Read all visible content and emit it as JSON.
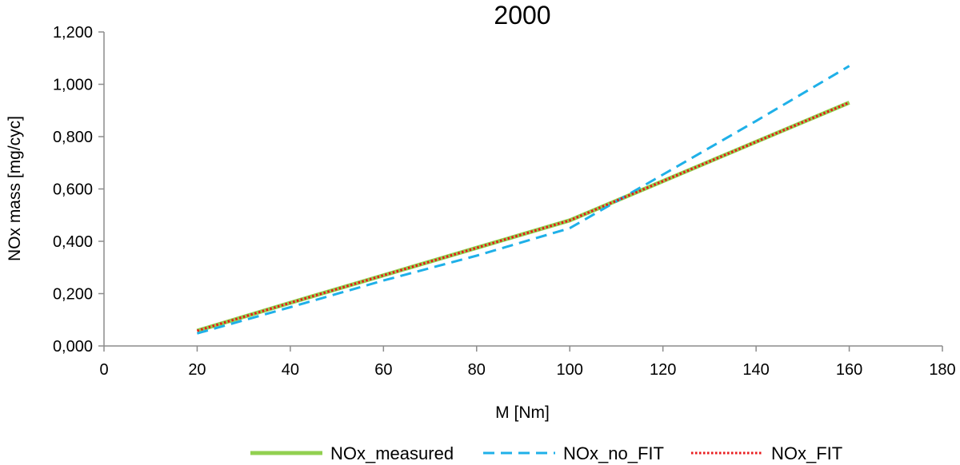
{
  "chart_data": {
    "type": "line",
    "title": "2000",
    "xlabel": "M [Nm]",
    "ylabel": "NOx mass [mg/cyc]",
    "xlim": [
      0,
      180
    ],
    "ylim": [
      0,
      1.2
    ],
    "xticks": [
      "0",
      "20",
      "40",
      "60",
      "80",
      "100",
      "120",
      "140",
      "160",
      "180"
    ],
    "yticks": [
      "0,000",
      "0,200",
      "0,400",
      "0,600",
      "0,800",
      "1,000",
      "1,200"
    ],
    "grid": false,
    "legend_position": "bottom",
    "x": [
      20,
      40,
      60,
      80,
      100,
      120,
      140,
      160
    ],
    "series": [
      {
        "name": "NOx_measured",
        "color": "#92d050",
        "style": "solid",
        "values": [
          0.058,
          0.165,
          0.27,
          0.375,
          0.48,
          0.63,
          0.78,
          0.93
        ]
      },
      {
        "name": "NOx_no_FIT",
        "color": "#1fb0e8",
        "style": "dashed",
        "values": [
          0.048,
          0.148,
          0.25,
          0.345,
          0.45,
          0.655,
          0.86,
          1.07
        ]
      },
      {
        "name": "NOx_FIT",
        "color": "#e8181a",
        "style": "dotted",
        "values": [
          0.058,
          0.165,
          0.27,
          0.375,
          0.48,
          0.63,
          0.78,
          0.93
        ]
      }
    ]
  }
}
